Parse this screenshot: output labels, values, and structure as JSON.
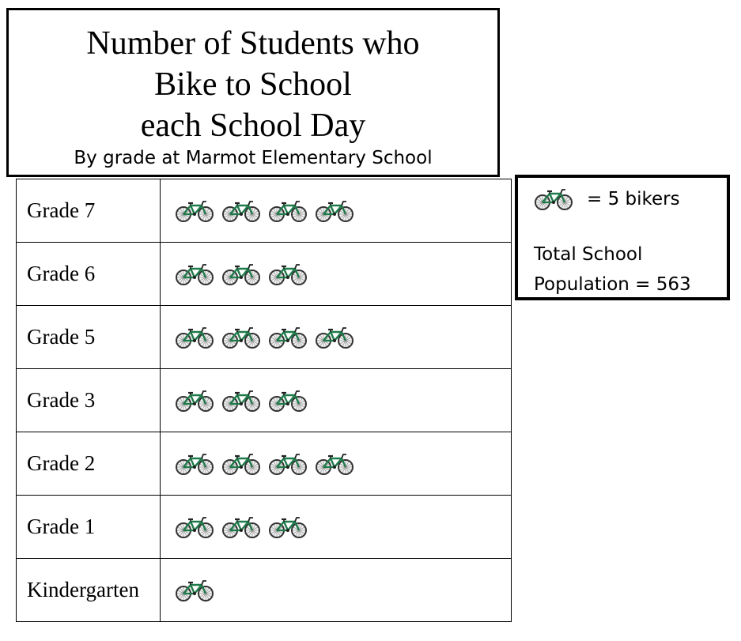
{
  "chart_data": {
    "type": "pictograph",
    "title_lines": [
      "Number of Students who",
      "Bike to School",
      "each School Day"
    ],
    "subtitle": "By grade at Marmot Elementary School",
    "key": {
      "symbol": "bicycle-icon",
      "text": "= 5 bikers",
      "value_per_symbol": 5
    },
    "total_lines": [
      "Total School",
      "Population = 563"
    ],
    "rows": [
      {
        "label": "Grade 7",
        "symbols": 4
      },
      {
        "label": "Grade 6",
        "symbols": 3
      },
      {
        "label": "Grade 5",
        "symbols": 4
      },
      {
        "label": "Grade 3",
        "symbols": 3
      },
      {
        "label": "Grade 2",
        "symbols": 4
      },
      {
        "label": "Grade 1",
        "symbols": 3
      },
      {
        "label": "Kindergarten",
        "symbols": 1
      }
    ]
  },
  "colors": {
    "bike_frame": "#1f7a4a",
    "bike_wheel": "#333333",
    "border": "#000000"
  }
}
